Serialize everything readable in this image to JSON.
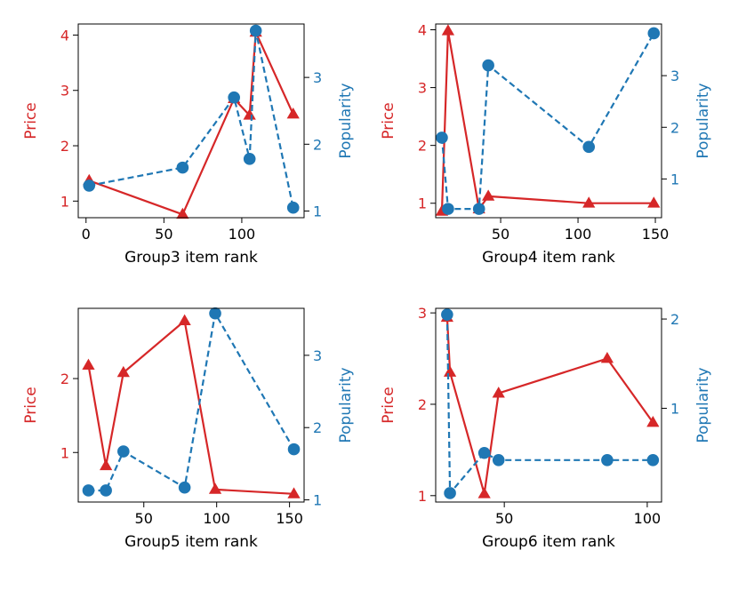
{
  "colors": {
    "price": "#d62728",
    "popularity": "#1f77b4",
    "axes": "#000000"
  },
  "chart_data": [
    {
      "type": "line",
      "xlabel": "Group3 item rank",
      "ylabel_left": "Price",
      "ylabel_right": "Popularity",
      "xlim": [
        -5,
        140
      ],
      "xticks": [
        0,
        50,
        100
      ],
      "ylim_left": [
        0.7,
        4.2
      ],
      "yticks_left": [
        1,
        2,
        3,
        4
      ],
      "ylim_right": [
        0.9,
        3.8
      ],
      "yticks_right": [
        1,
        2,
        3
      ],
      "series": [
        {
          "name": "Price",
          "axis": "left",
          "style": "solid",
          "marker": "triangle",
          "x": [
            2,
            62,
            95,
            105,
            109,
            133
          ],
          "y": [
            1.37,
            0.76,
            2.85,
            2.55,
            4.05,
            2.57
          ]
        },
        {
          "name": "Popularity",
          "axis": "right",
          "style": "dashed",
          "marker": "circle",
          "x": [
            2,
            62,
            95,
            105,
            109,
            133
          ],
          "y": [
            1.38,
            1.65,
            2.7,
            1.78,
            3.7,
            1.05
          ]
        }
      ]
    },
    {
      "type": "line",
      "xlabel": "Group4 item rank",
      "ylabel_left": "Price",
      "ylabel_right": "Popularity",
      "xlim": [
        8,
        154
      ],
      "xticks": [
        50,
        100,
        150
      ],
      "ylim_left": [
        0.75,
        4.1
      ],
      "yticks_left": [
        1,
        2,
        3,
        4
      ],
      "ylim_right": [
        0.25,
        4.0
      ],
      "yticks_right": [
        1,
        2,
        3
      ],
      "series": [
        {
          "name": "Price",
          "axis": "left",
          "style": "solid",
          "marker": "triangle",
          "x": [
            12,
            16,
            36,
            42,
            107,
            149
          ],
          "y": [
            0.86,
            3.98,
            0.9,
            1.12,
            1.0,
            1.0
          ]
        },
        {
          "name": "Popularity",
          "axis": "right",
          "style": "dashed",
          "marker": "circle",
          "x": [
            12,
            16,
            36,
            42,
            107,
            149
          ],
          "y": [
            1.8,
            0.42,
            0.42,
            3.2,
            1.62,
            3.82
          ]
        }
      ]
    },
    {
      "type": "line",
      "xlabel": "Group5 item rank",
      "ylabel_left": "Price",
      "ylabel_right": "Popularity",
      "xlim": [
        5,
        160
      ],
      "xticks": [
        50,
        100,
        150
      ],
      "ylim_left": [
        0.33,
        2.95
      ],
      "yticks_left": [
        1,
        2
      ],
      "ylim_right": [
        0.97,
        3.65
      ],
      "yticks_right": [
        1,
        2,
        3
      ],
      "series": [
        {
          "name": "Price",
          "axis": "left",
          "style": "solid",
          "marker": "triangle",
          "x": [
            12,
            24,
            36,
            78,
            99,
            153
          ],
          "y": [
            2.18,
            0.82,
            2.08,
            2.78,
            0.5,
            0.44
          ]
        },
        {
          "name": "Popularity",
          "axis": "right",
          "style": "dashed",
          "marker": "circle",
          "x": [
            12,
            24,
            36,
            78,
            99,
            153
          ],
          "y": [
            1.13,
            1.13,
            1.67,
            1.17,
            3.58,
            1.7
          ]
        }
      ]
    },
    {
      "type": "line",
      "xlabel": "Group6 item rank",
      "ylabel_left": "Price",
      "ylabel_right": "Popularity",
      "xlim": [
        26,
        105
      ],
      "xticks": [
        50,
        100
      ],
      "ylim_left": [
        0.93,
        3.05
      ],
      "yticks_left": [
        1,
        2,
        3
      ],
      "ylim_right": [
        -0.05,
        2.12
      ],
      "yticks_right": [
        1,
        2
      ],
      "series": [
        {
          "name": "Price",
          "axis": "left",
          "style": "solid",
          "marker": "triangle",
          "x": [
            30,
            31,
            43,
            48,
            86,
            102
          ],
          "y": [
            2.95,
            2.35,
            1.02,
            2.12,
            2.5,
            1.8
          ]
        },
        {
          "name": "Popularity",
          "axis": "right",
          "style": "dashed",
          "marker": "circle",
          "x": [
            30,
            31,
            43,
            48,
            86,
            102
          ],
          "y": [
            2.05,
            0.05,
            0.5,
            0.42,
            0.42,
            0.42
          ]
        }
      ]
    }
  ]
}
